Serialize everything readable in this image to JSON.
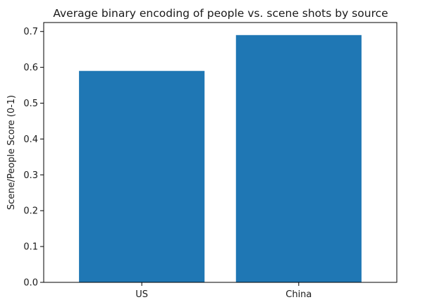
{
  "chart_data": {
    "type": "bar",
    "title": "Average binary encoding of people vs. scene shots by source",
    "xlabel": "",
    "ylabel": "Scene/People Score (0-1)",
    "categories": [
      "US",
      "China"
    ],
    "values": [
      0.59,
      0.69
    ],
    "ylim": [
      0,
      0.725
    ],
    "yticks": [
      0.0,
      0.1,
      0.2,
      0.3,
      0.4,
      0.5,
      0.6,
      0.7
    ],
    "ytick_labels": [
      "0.0",
      "0.1",
      "0.2",
      "0.3",
      "0.4",
      "0.5",
      "0.6",
      "0.7"
    ],
    "bar_color": "#1f77b4",
    "grid": false,
    "legend": false
  }
}
